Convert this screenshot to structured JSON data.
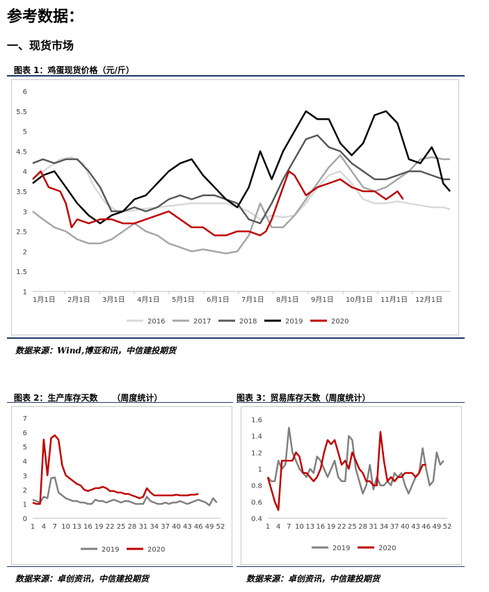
{
  "heading": "参考数据：",
  "section": "一、现货市场",
  "figures": [
    {
      "title": "图表 1：鸡蛋现货价格（元/斤）",
      "source": "数据来源：Wind,博亚和讯，中信建投期货"
    },
    {
      "title": "图表 2：生产库存天数     （周度统计）",
      "source": "数据来源：卓创资讯，中信建投期货"
    },
    {
      "title": "图表 3：贸易库存天数（周度统计）",
      "source": "数据来源：卓创资讯，中信建投期货"
    }
  ],
  "chart_data": [
    {
      "type": "line",
      "ylim": [
        1,
        6
      ],
      "yticks": [
        "1",
        "1.5",
        "2",
        "2.5",
        "3",
        "3.5",
        "4",
        "4.5",
        "5",
        "5.5",
        "6"
      ],
      "x_tick_labels": [
        "1月1日",
        "2月1日",
        "3月1日",
        "4月1日",
        "5月1日",
        "6月1日",
        "7月1日",
        "8月1日",
        "9月1日",
        "10月1日",
        "11月1日",
        "12月1日"
      ],
      "x_unit": "day of year",
      "xlim": [
        1,
        366
      ],
      "legend_position": "bottom",
      "series": [
        {
          "name": "2016",
          "color": "#d9d9d9",
          "x": [
            1,
            15,
            25,
            35,
            45,
            55,
            65,
            75,
            85,
            95,
            110,
            125,
            140,
            155,
            170,
            180,
            190,
            200,
            210,
            220,
            230,
            240,
            250,
            260,
            270,
            280,
            290,
            300,
            310,
            320,
            330,
            340,
            350,
            360,
            366
          ],
          "y": [
            3.8,
            4.1,
            4.3,
            4.35,
            4.2,
            3.6,
            3.2,
            3.0,
            3.0,
            3.05,
            3.1,
            3.15,
            3.2,
            3.2,
            3.2,
            3.1,
            3.0,
            2.8,
            2.9,
            2.85,
            2.9,
            3.2,
            3.6,
            3.9,
            4.0,
            3.7,
            3.3,
            3.2,
            3.2,
            3.25,
            3.2,
            3.15,
            3.1,
            3.1,
            3.05
          ]
        },
        {
          "name": "2017",
          "color": "#a6a6a6",
          "x": [
            1,
            10,
            20,
            30,
            40,
            50,
            60,
            70,
            80,
            90,
            100,
            110,
            120,
            130,
            140,
            150,
            160,
            170,
            180,
            190,
            200,
            210,
            220,
            230,
            240,
            250,
            260,
            270,
            280,
            290,
            300,
            310,
            320,
            330,
            340,
            350,
            360,
            366
          ],
          "y": [
            3.0,
            2.8,
            2.6,
            2.5,
            2.3,
            2.2,
            2.2,
            2.3,
            2.5,
            2.7,
            2.5,
            2.4,
            2.2,
            2.1,
            2.0,
            2.05,
            2.0,
            1.95,
            2.0,
            2.4,
            3.2,
            2.6,
            2.6,
            2.9,
            3.3,
            3.7,
            4.1,
            4.4,
            4.0,
            3.6,
            3.5,
            3.6,
            3.8,
            4.0,
            4.3,
            4.35,
            4.3,
            4.3
          ]
        },
        {
          "name": "2018",
          "color": "#595959",
          "x": [
            1,
            10,
            20,
            30,
            40,
            50,
            60,
            70,
            80,
            90,
            100,
            110,
            120,
            130,
            140,
            150,
            160,
            170,
            180,
            190,
            200,
            210,
            220,
            230,
            240,
            250,
            260,
            270,
            280,
            290,
            300,
            310,
            320,
            330,
            340,
            350,
            360,
            366
          ],
          "y": [
            4.2,
            4.3,
            4.2,
            4.3,
            4.3,
            4.0,
            3.6,
            3.0,
            3.0,
            3.1,
            3.0,
            3.1,
            3.3,
            3.4,
            3.3,
            3.4,
            3.4,
            3.3,
            3.2,
            2.8,
            2.7,
            3.2,
            3.8,
            4.3,
            4.8,
            4.9,
            4.6,
            4.5,
            4.2,
            4.0,
            3.8,
            3.8,
            3.9,
            4.0,
            4.0,
            3.9,
            3.8,
            3.8
          ]
        },
        {
          "name": "2019",
          "color": "#000000",
          "x": [
            1,
            10,
            20,
            30,
            40,
            50,
            60,
            70,
            80,
            90,
            100,
            110,
            120,
            130,
            140,
            150,
            160,
            170,
            180,
            190,
            200,
            210,
            220,
            230,
            240,
            250,
            260,
            270,
            280,
            290,
            300,
            310,
            320,
            330,
            340,
            350,
            355,
            360,
            366
          ],
          "y": [
            3.7,
            3.9,
            4.0,
            3.6,
            3.2,
            2.9,
            2.7,
            2.9,
            3.0,
            3.3,
            3.4,
            3.7,
            4.0,
            4.2,
            4.3,
            3.9,
            3.6,
            3.3,
            3.1,
            3.6,
            4.5,
            3.8,
            4.5,
            5.0,
            5.5,
            5.3,
            5.3,
            4.7,
            4.4,
            4.7,
            5.4,
            5.5,
            5.2,
            4.3,
            4.2,
            4.6,
            4.3,
            3.7,
            3.5
          ]
        },
        {
          "name": "2020",
          "color": "#c00000",
          "x": [
            1,
            8,
            15,
            25,
            30,
            35,
            40,
            50,
            60,
            70,
            80,
            90,
            100,
            110,
            120,
            130,
            140,
            150,
            160,
            170,
            180,
            190,
            200,
            205,
            210,
            220,
            225,
            230,
            240,
            250,
            260,
            270,
            280,
            290,
            300,
            310,
            315,
            320,
            325
          ],
          "y": [
            3.8,
            4.0,
            3.6,
            3.5,
            3.2,
            2.6,
            2.8,
            2.7,
            2.8,
            2.8,
            2.7,
            2.7,
            2.8,
            2.9,
            3.0,
            2.8,
            2.6,
            2.6,
            2.4,
            2.4,
            2.5,
            2.5,
            2.4,
            2.5,
            2.8,
            3.6,
            4.0,
            3.9,
            3.4,
            3.6,
            3.7,
            3.8,
            3.6,
            3.5,
            3.5,
            3.3,
            3.4,
            3.5,
            3.3
          ]
        }
      ]
    },
    {
      "type": "line",
      "ylim": [
        0,
        7
      ],
      "yticks": [
        "0",
        "1",
        "2",
        "3",
        "4",
        "5",
        "6",
        "7"
      ],
      "x_tick_labels": [
        "1",
        "4",
        "7",
        "10",
        "13",
        "16",
        "19",
        "22",
        "25",
        "28",
        "31",
        "34",
        "37",
        "40",
        "43",
        "46",
        "49",
        "52"
      ],
      "x_unit": "week",
      "xlim": [
        1,
        52
      ],
      "legend_position": "bottom",
      "series": [
        {
          "name": "2019",
          "color": "#808080",
          "x": [
            1,
            2,
            3,
            4,
            5,
            6,
            7,
            8,
            9,
            10,
            11,
            12,
            13,
            14,
            15,
            16,
            17,
            18,
            19,
            20,
            21,
            22,
            23,
            24,
            25,
            26,
            27,
            28,
            29,
            30,
            31,
            32,
            33,
            34,
            35,
            36,
            37,
            38,
            39,
            40,
            41,
            42,
            43,
            44,
            45,
            46,
            47,
            48,
            49,
            50,
            51
          ],
          "y": [
            1.3,
            1.2,
            1.1,
            1.5,
            1.4,
            2.8,
            2.85,
            1.8,
            1.6,
            1.4,
            1.3,
            1.2,
            1.2,
            1.1,
            1.1,
            1.0,
            1.0,
            1.3,
            1.2,
            1.2,
            1.1,
            1.2,
            1.3,
            1.2,
            1.1,
            1.2,
            1.2,
            1.1,
            1.0,
            1.0,
            1.0,
            1.5,
            1.2,
            1.1,
            1.0,
            1.0,
            1.1,
            1.0,
            1.1,
            1.1,
            1.2,
            1.1,
            1.0,
            1.1,
            1.2,
            1.3,
            1.2,
            1.1,
            0.9,
            1.4,
            1.1
          ]
        },
        {
          "name": "2020",
          "color": "#c00000",
          "x": [
            1,
            2,
            3,
            4,
            5,
            6,
            7,
            8,
            9,
            10,
            11,
            12,
            13,
            14,
            15,
            16,
            17,
            18,
            19,
            20,
            21,
            22,
            23,
            24,
            25,
            26,
            27,
            28,
            29,
            30,
            31,
            32,
            33,
            34,
            35,
            36,
            37,
            38,
            39,
            40,
            41,
            42,
            43,
            44,
            45,
            46
          ],
          "y": [
            1.1,
            1.0,
            1.0,
            5.5,
            3.0,
            5.6,
            5.8,
            5.5,
            3.7,
            3.0,
            2.8,
            2.6,
            2.4,
            2.3,
            2.0,
            1.9,
            2.0,
            2.1,
            2.1,
            2.2,
            2.1,
            1.9,
            1.9,
            1.8,
            1.8,
            1.7,
            1.7,
            1.6,
            1.5,
            1.4,
            1.5,
            2.1,
            1.8,
            1.6,
            1.6,
            1.6,
            1.6,
            1.6,
            1.6,
            1.65,
            1.6,
            1.6,
            1.6,
            1.65,
            1.65,
            1.7
          ]
        }
      ]
    },
    {
      "type": "line",
      "ylim": [
        0.4,
        1.6
      ],
      "yticks": [
        "0.4",
        "0.6",
        "0.8",
        "1",
        "1.2",
        "1.4",
        "1.6"
      ],
      "x_tick_labels": [
        "1",
        "4",
        "7",
        "10",
        "13",
        "16",
        "19",
        "22",
        "25",
        "28",
        "31",
        "34",
        "37",
        "40",
        "43",
        "46",
        "49",
        "52"
      ],
      "x_unit": "week",
      "xlim": [
        1,
        52
      ],
      "legend_position": "bottom",
      "series": [
        {
          "name": "2019",
          "color": "#808080",
          "x": [
            1,
            2,
            3,
            4,
            5,
            6,
            7,
            8,
            9,
            10,
            11,
            12,
            13,
            14,
            15,
            16,
            17,
            18,
            19,
            20,
            21,
            22,
            23,
            24,
            25,
            26,
            27,
            28,
            29,
            30,
            31,
            32,
            33,
            34,
            35,
            36,
            37,
            38,
            39,
            40,
            41,
            42,
            43,
            44,
            45,
            46,
            47,
            48,
            49,
            50,
            51
          ],
          "y": [
            0.9,
            0.85,
            0.85,
            1.1,
            1.0,
            1.05,
            1.5,
            1.2,
            1.1,
            1.0,
            0.95,
            0.9,
            1.0,
            0.95,
            1.15,
            1.1,
            1.0,
            0.9,
            1.0,
            1.1,
            0.9,
            0.85,
            0.85,
            1.4,
            1.35,
            1.0,
            0.85,
            0.7,
            0.8,
            1.05,
            0.75,
            0.9,
            0.8,
            0.8,
            0.85,
            0.8,
            0.95,
            0.9,
            0.95,
            0.8,
            0.7,
            0.8,
            0.9,
            0.95,
            1.25,
            1.0,
            0.8,
            0.85,
            1.2,
            1.05,
            1.1
          ]
        },
        {
          "name": "2020",
          "color": "#c00000",
          "x": [
            1,
            2,
            3,
            4,
            5,
            6,
            7,
            8,
            9,
            10,
            11,
            12,
            13,
            14,
            15,
            16,
            17,
            18,
            19,
            20,
            21,
            22,
            23,
            24,
            25,
            26,
            27,
            28,
            29,
            30,
            31,
            32,
            33,
            34,
            35,
            36,
            37,
            38,
            39,
            40,
            41,
            42,
            43,
            44,
            45,
            46
          ],
          "y": [
            0.9,
            0.75,
            0.6,
            0.5,
            1.1,
            1.1,
            1.1,
            1.1,
            1.2,
            1.15,
            0.95,
            0.95,
            0.9,
            0.85,
            0.9,
            1.0,
            1.2,
            1.35,
            1.3,
            1.35,
            1.2,
            1.05,
            1.1,
            1.0,
            1.2,
            1.1,
            1.0,
            0.95,
            0.85,
            0.85,
            0.8,
            0.8,
            1.45,
            1.1,
            0.85,
            0.9,
            0.85,
            0.9,
            0.9,
            0.95,
            0.95,
            0.95,
            0.9,
            0.95,
            1.05,
            1.05
          ]
        }
      ]
    }
  ]
}
